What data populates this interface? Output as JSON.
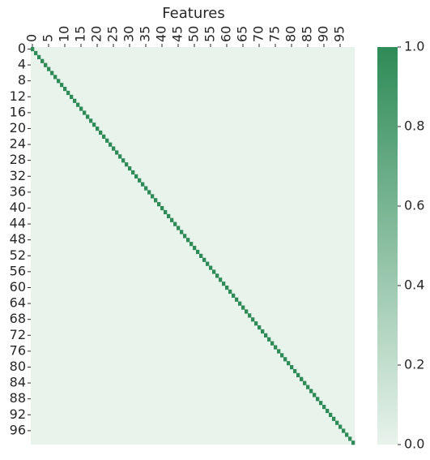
{
  "chart_data": {
    "type": "heatmap",
    "title": "Features",
    "xlabel": "",
    "ylabel": "",
    "rows": 100,
    "cols": 100,
    "description_of_values": "identity",
    "diagonal_value": 1.0,
    "off_diagonal_value": 0.0,
    "x_tick_labels": [
      "0",
      "5",
      "10",
      "15",
      "20",
      "25",
      "30",
      "35",
      "40",
      "45",
      "50",
      "55",
      "60",
      "65",
      "70",
      "75",
      "80",
      "85",
      "90",
      "95"
    ],
    "x_tick_step": 5,
    "y_tick_labels": [
      "0",
      "4",
      "8",
      "12",
      "16",
      "20",
      "24",
      "28",
      "32",
      "36",
      "40",
      "44",
      "48",
      "52",
      "56",
      "60",
      "64",
      "68",
      "72",
      "76",
      "80",
      "84",
      "88",
      "92",
      "96"
    ],
    "y_tick_step": 4,
    "colorbar": {
      "vmin": 0.0,
      "vmax": 1.0,
      "tick_labels": [
        "0.0",
        "0.2",
        "0.4",
        "0.6",
        "0.8",
        "1.0"
      ],
      "tick_values": [
        0.0,
        0.2,
        0.4,
        0.6,
        0.8,
        1.0
      ],
      "color_low": "#e8f3ec",
      "color_high": "#2e8b57"
    }
  }
}
